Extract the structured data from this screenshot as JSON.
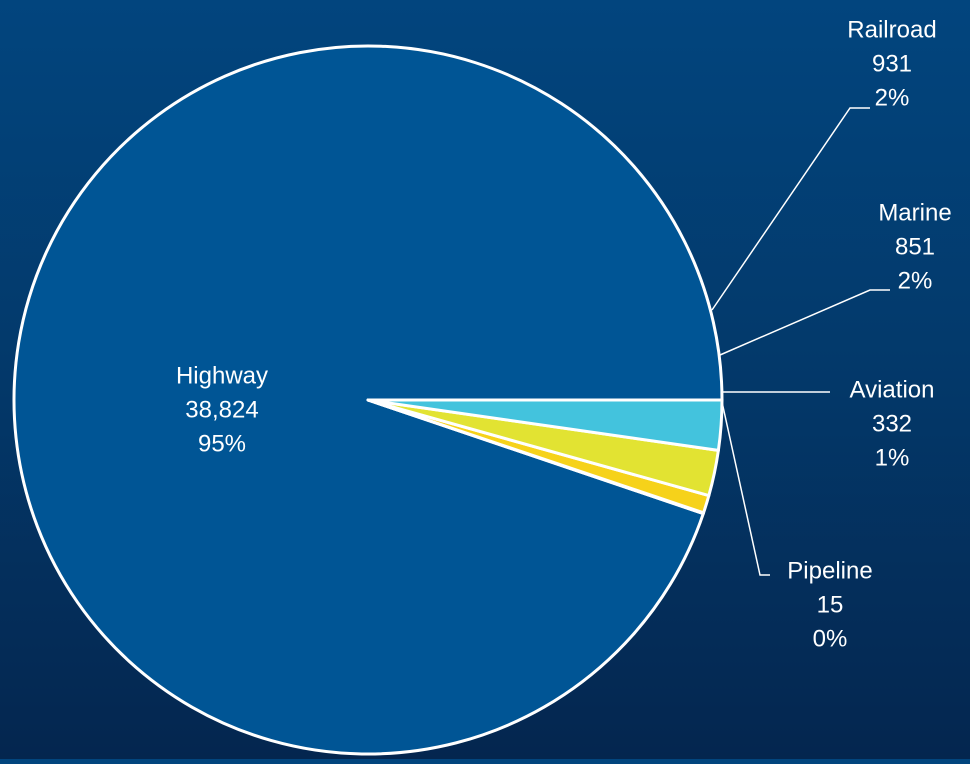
{
  "chart_data": {
    "type": "pie",
    "title": "",
    "slices": [
      {
        "label": "Highway",
        "value": 38824,
        "value_text": "38,824",
        "percent_text": "95%",
        "color": "#005595"
      },
      {
        "label": "Pipeline",
        "value": 15,
        "value_text": "15",
        "percent_text": "0%",
        "color": "#f2c500"
      },
      {
        "label": "Aviation",
        "value": 332,
        "value_text": "332",
        "percent_text": "1%",
        "color": "#f6d21a"
      },
      {
        "label": "Marine",
        "value": 851,
        "value_text": "851",
        "percent_text": "2%",
        "color": "#e2e332"
      },
      {
        "label": "Railroad",
        "value": 931,
        "value_text": "931",
        "percent_text": "2%",
        "color": "#43c3dd"
      }
    ],
    "start_angle_deg": 0,
    "direction": "counterclockwise",
    "label_positions": "inside for Highway; outside with leader lines for others",
    "border_color": "#ffffff",
    "background": "#02457e"
  }
}
